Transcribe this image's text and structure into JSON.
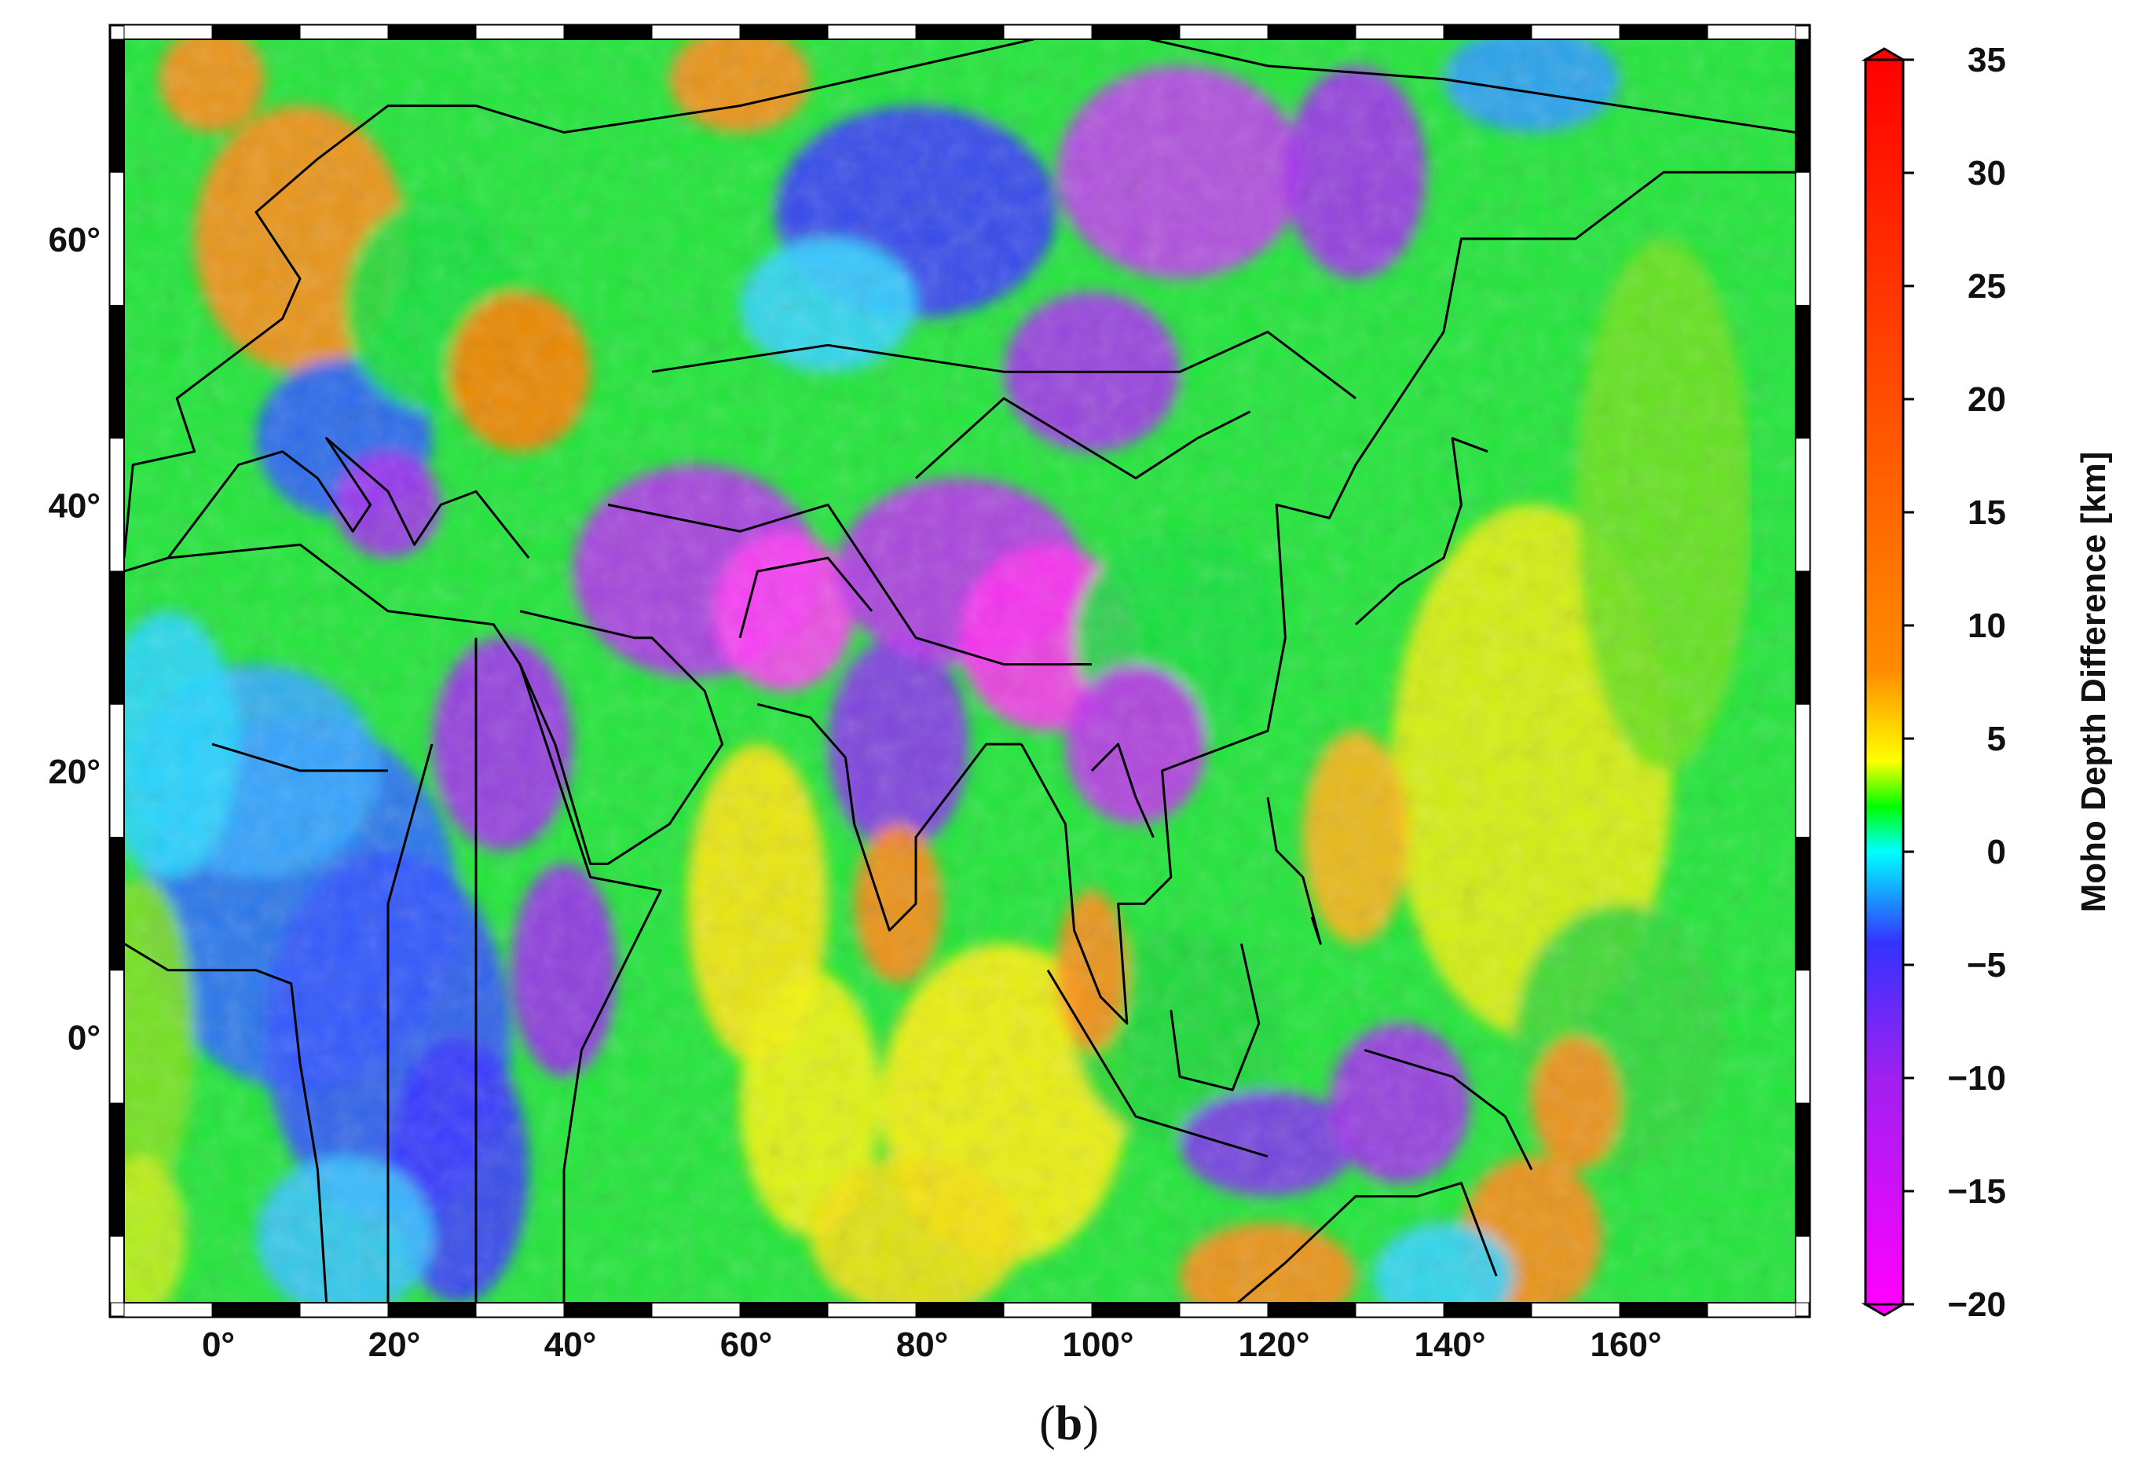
{
  "map": {
    "panel_label_open": "(",
    "panel_label_letter": "b",
    "panel_label_close": ")",
    "lon_ticks": [
      {
        "value": 0,
        "label": "0°"
      },
      {
        "value": 20,
        "label": "20°"
      },
      {
        "value": 40,
        "label": "40°"
      },
      {
        "value": 60,
        "label": "60°"
      },
      {
        "value": 80,
        "label": "80°"
      },
      {
        "value": 100,
        "label": "100°"
      },
      {
        "value": 120,
        "label": "120°"
      },
      {
        "value": 140,
        "label": "140°"
      },
      {
        "value": 160,
        "label": "160°"
      }
    ],
    "lat_ticks": [
      {
        "value": 60,
        "label": "60°"
      },
      {
        "value": 40,
        "label": "40°"
      },
      {
        "value": 20,
        "label": "20°"
      },
      {
        "value": 0,
        "label": "0°"
      }
    ],
    "lon_range": [
      -10,
      180
    ],
    "lat_range": [
      -20,
      75
    ],
    "colorbar": {
      "title": "Moho Depth Difference [km]",
      "range": [
        -20,
        35
      ],
      "ticks": [
        {
          "value": 35,
          "label": "35"
        },
        {
          "value": 30,
          "label": "30"
        },
        {
          "value": 25,
          "label": "25"
        },
        {
          "value": 20,
          "label": "20"
        },
        {
          "value": 15,
          "label": "15"
        },
        {
          "value": 10,
          "label": "10"
        },
        {
          "value": 5,
          "label": "5"
        },
        {
          "value": 0,
          "label": "0"
        },
        {
          "value": -5,
          "label": "−5"
        },
        {
          "value": -10,
          "label": "−10"
        },
        {
          "value": -15,
          "label": "−15"
        },
        {
          "value": -20,
          "label": "−20"
        }
      ],
      "colors": [
        {
          "value": -20,
          "color": "#ff00ff"
        },
        {
          "value": -10,
          "color": "#a020f0"
        },
        {
          "value": -4,
          "color": "#3333ff"
        },
        {
          "value": 0,
          "color": "#00ffff"
        },
        {
          "value": 2,
          "color": "#00ff00"
        },
        {
          "value": 4,
          "color": "#ffff00"
        },
        {
          "value": 8,
          "color": "#ff8c00"
        },
        {
          "value": 35,
          "color": "#ff0000"
        }
      ]
    }
  }
}
